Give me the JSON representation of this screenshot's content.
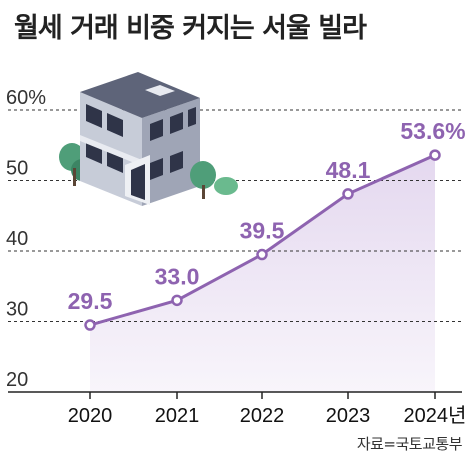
{
  "header": {
    "title": "월세 거래 비중 커지는 서울 빌라"
  },
  "footer": {
    "source": "자료=국토교통부"
  },
  "colors": {
    "accent": "#8e63b0",
    "fill": "#efe8f5",
    "grid": "#333333"
  },
  "icons": {
    "illustration": "building-illustration-icon"
  },
  "chart_data": {
    "type": "line",
    "title": "월세 거래 비중 커지는 서울 빌라",
    "x": [
      "2020",
      "2021",
      "2022",
      "2023",
      "2024년"
    ],
    "values": [
      29.5,
      33.0,
      39.5,
      48.1,
      53.6
    ],
    "data_labels": [
      "29.5",
      "33.0",
      "39.5",
      "48.1",
      "53.6%"
    ],
    "y_ticks": [
      "20",
      "30",
      "40",
      "50",
      "60%"
    ],
    "ylim": [
      20,
      60
    ],
    "grid": true,
    "area_fill": true
  }
}
